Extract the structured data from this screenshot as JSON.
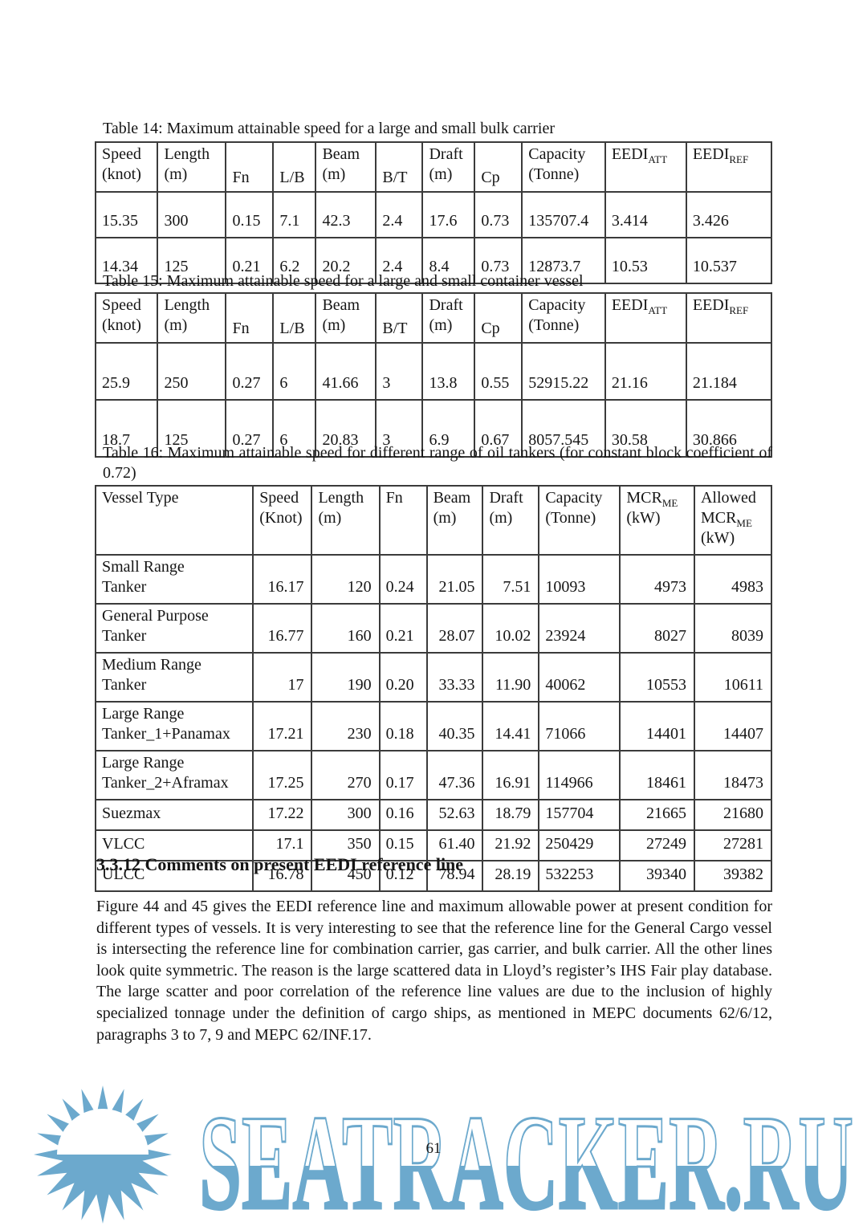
{
  "page_number": "61",
  "colors": {
    "watermark_blue": "#6ca9cd",
    "text": "#151515",
    "table_border": "#3b3b3b"
  },
  "table14": {
    "caption": "Table 14: Maximum attainable speed for a large and small bulk carrier",
    "headers": [
      "Speed\n(knot)",
      "Length\n(m)",
      "Fn",
      "L/B",
      "Beam\n(m)",
      "B/T",
      "Draft\n(m)",
      "Cp",
      "Capacity\n(Tonne)",
      "EEDI~ATT~",
      "EEDI~REF~"
    ],
    "rows": [
      [
        "15.35",
        "300",
        "0.15",
        "7.1",
        "42.3",
        "2.4",
        "17.6",
        "0.73",
        "135707.4",
        "3.414",
        "3.426"
      ],
      [
        "14.34",
        "125",
        "0.21",
        "6.2",
        "20.2",
        "2.4",
        "8.4",
        "0.73",
        "12873.7",
        "10.53",
        "10.537"
      ]
    ]
  },
  "table15": {
    "caption": "Table 15: Maximum attainable speed for a large and small container vessel",
    "headers": [
      "Speed\n(knot)",
      "Length\n(m)",
      "Fn",
      "L/B",
      "Beam\n(m)",
      "B/T",
      "Draft\n(m)",
      "Cp",
      "Capacity\n(Tonne)",
      "EEDI~ATT~",
      "EEDI~REF~"
    ],
    "rows": [
      [
        "25.9",
        "250",
        "0.27",
        "6",
        "41.66",
        "3",
        "13.8",
        "0.55",
        "52915.22",
        "21.16",
        "21.184"
      ],
      [
        "18.7",
        "125",
        "0.27",
        "6",
        "20.83",
        "3",
        "6.9",
        "0.67",
        "8057.545",
        "30.58",
        "30.866"
      ]
    ]
  },
  "table16": {
    "caption": "Table 16: Maximum attainable speed for different range of oil tankers (for constant block coefficient of 0.72)",
    "headers": [
      "Vessel Type",
      "Speed\n(Knot)",
      "Length\n(m)",
      "Fn",
      "Beam\n(m)",
      "Draft\n(m)",
      "Capacity\n(Tonne)",
      "MCR~ME~\n(kW)",
      "Allowed\nMCR~ME~\n(kW)"
    ],
    "rows": [
      [
        "Small Range\nTanker",
        "16.17",
        "120",
        "0.24",
        "21.05",
        "7.51",
        "10093",
        "4973",
        "4983"
      ],
      [
        "General Purpose\nTanker",
        "16.77",
        "160",
        "0.21",
        "28.07",
        "10.02",
        "23924",
        "8027",
        "8039"
      ],
      [
        "Medium Range\nTanker",
        "17",
        "190",
        "0.20",
        "33.33",
        "11.90",
        "40062",
        "10553",
        "10611"
      ],
      [
        "Large Range\nTanker_1+Panamax",
        "17.21",
        "230",
        "0.18",
        "40.35",
        "14.41",
        "71066",
        "14401",
        "14407"
      ],
      [
        "Large Range\nTanker_2+Aframax",
        "17.25",
        "270",
        "0.17",
        "47.36",
        "16.91",
        "114966",
        "18461",
        "18473"
      ],
      [
        "Suezmax",
        "17.22",
        "300",
        "0.16",
        "52.63",
        "18.79",
        "157704",
        "21665",
        "21680"
      ],
      [
        "VLCC",
        "17.1",
        "350",
        "0.15",
        "61.40",
        "21.92",
        "250429",
        "27249",
        "27281"
      ],
      [
        "ULCC",
        "16.78",
        "450",
        "0.12",
        "78.94",
        "28.19",
        "532253",
        "39340",
        "39382"
      ]
    ]
  },
  "section": {
    "heading": "3.3.12 Comments on present EEDI reference line",
    "paragraph": "Figure 44 and 45 gives the EEDI reference line and maximum allowable power at present condition for different types of vessels. It is very interesting to see that the reference line for the General Cargo vessel is intersecting the reference line for combination carrier, gas carrier, and bulk carrier. All the other lines look quite symmetric. The reason is the large scattered data in Lloyd’s register’s IHS Fair play database. The large scatter and poor correlation of the reference line values are due to the inclusion of highly specialized tonnage under the definition of cargo ships, as mentioned in MEPC documents 62/6/12, paragraphs 3 to 7, 9 and MEPC 62/INF.17."
  },
  "watermark": {
    "text": "SEATRACKER.RU",
    "icon": "sun-icon"
  }
}
